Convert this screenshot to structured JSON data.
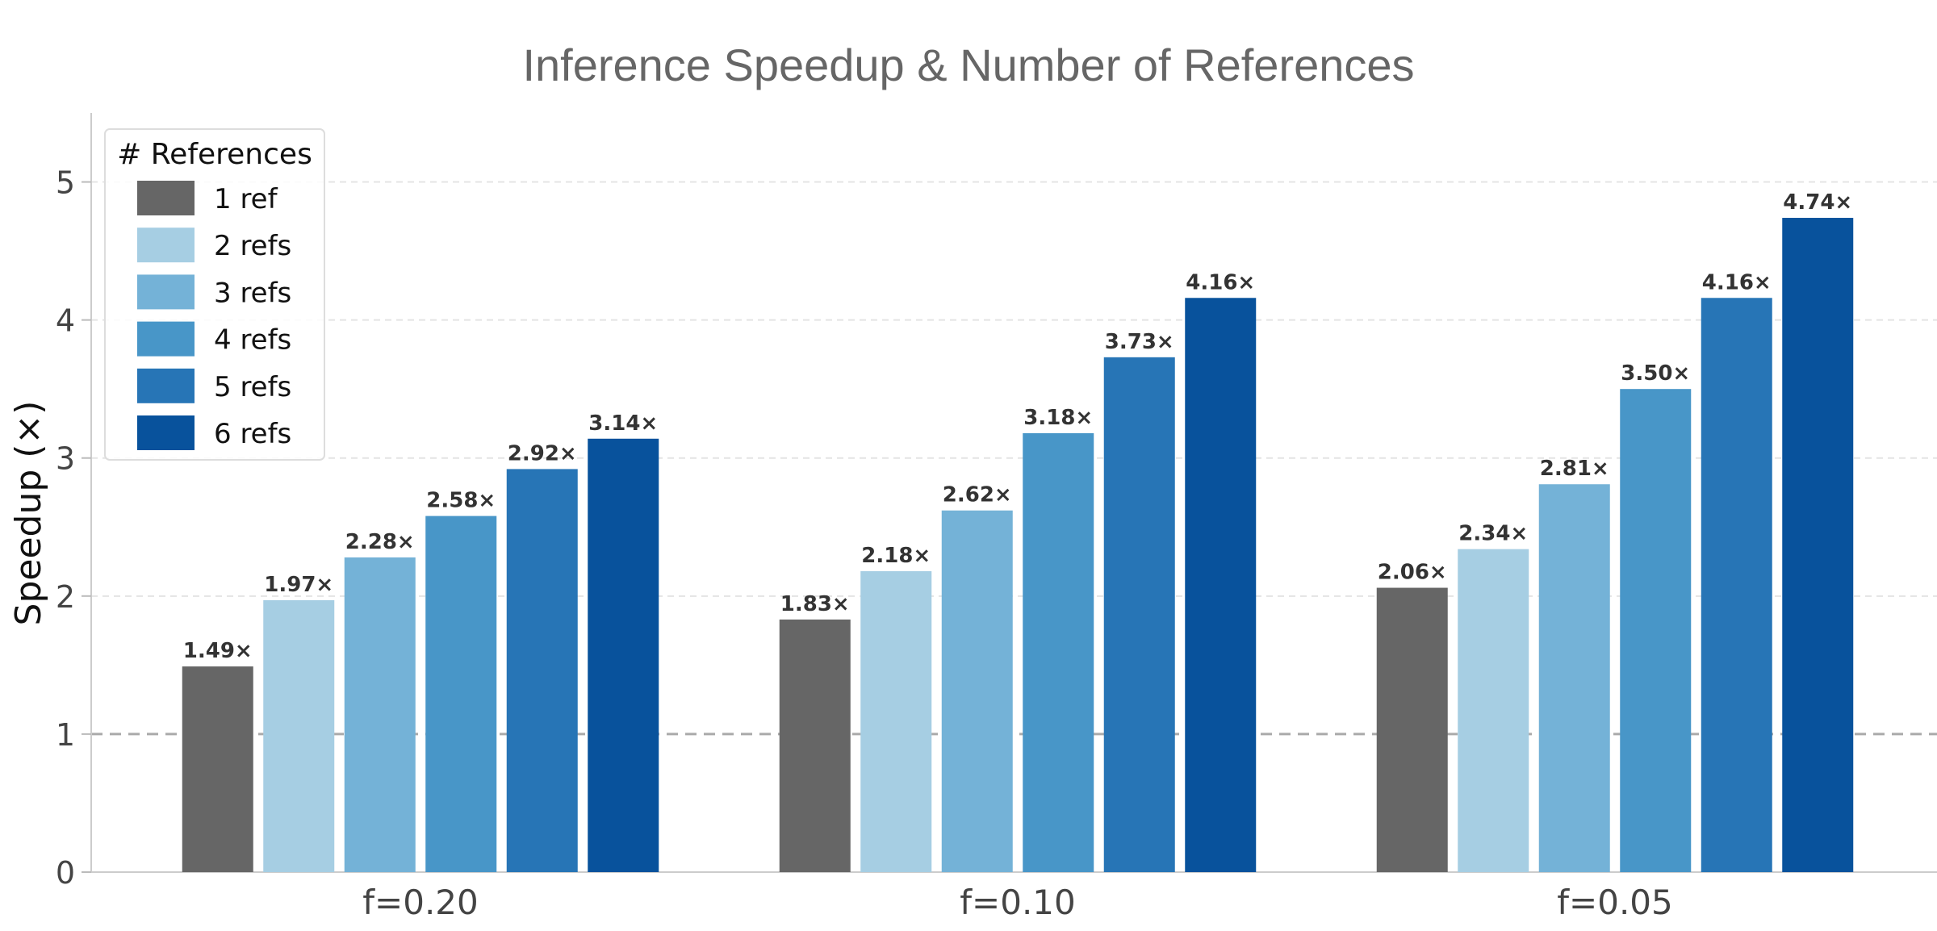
{
  "chart_data": {
    "type": "bar",
    "title": "Inference Speedup & Number of References",
    "xlabel": "",
    "ylabel": "Speedup (×)",
    "ylim": [
      0,
      5.5
    ],
    "yticks": [
      "0",
      "1",
      "2",
      "3",
      "4",
      "5"
    ],
    "categories": [
      "f=0.20",
      "f=0.10",
      "f=0.05"
    ],
    "reference_line": 1,
    "grid": "horizontal dashed",
    "legend": {
      "title": "# References",
      "placement": "top-left"
    },
    "series": [
      {
        "name": "1 ref",
        "color": "#666666",
        "values": [
          1.49,
          1.83,
          2.06
        ],
        "labels": [
          "1.49×",
          "1.83×",
          "2.06×"
        ]
      },
      {
        "name": "2 refs",
        "color": "#a6cee3",
        "values": [
          1.97,
          2.18,
          2.34
        ],
        "labels": [
          "1.97×",
          "2.18×",
          "2.34×"
        ]
      },
      {
        "name": "3 refs",
        "color": "#74b2d7",
        "values": [
          2.28,
          2.62,
          2.81
        ],
        "labels": [
          "2.28×",
          "2.62×",
          "2.81×"
        ]
      },
      {
        "name": "4 refs",
        "color": "#4896c8",
        "values": [
          2.58,
          3.18,
          3.5
        ],
        "labels": [
          "2.58×",
          "3.18×",
          "3.50×"
        ]
      },
      {
        "name": "5 refs",
        "color": "#2775b6",
        "values": [
          2.92,
          3.73,
          4.16
        ],
        "labels": [
          "2.92×",
          "3.73×",
          "4.16×"
        ]
      },
      {
        "name": "6 refs",
        "color": "#08529c",
        "values": [
          3.14,
          4.16,
          4.74
        ],
        "labels": [
          "3.14×",
          "4.16×",
          "4.74×"
        ]
      }
    ]
  }
}
